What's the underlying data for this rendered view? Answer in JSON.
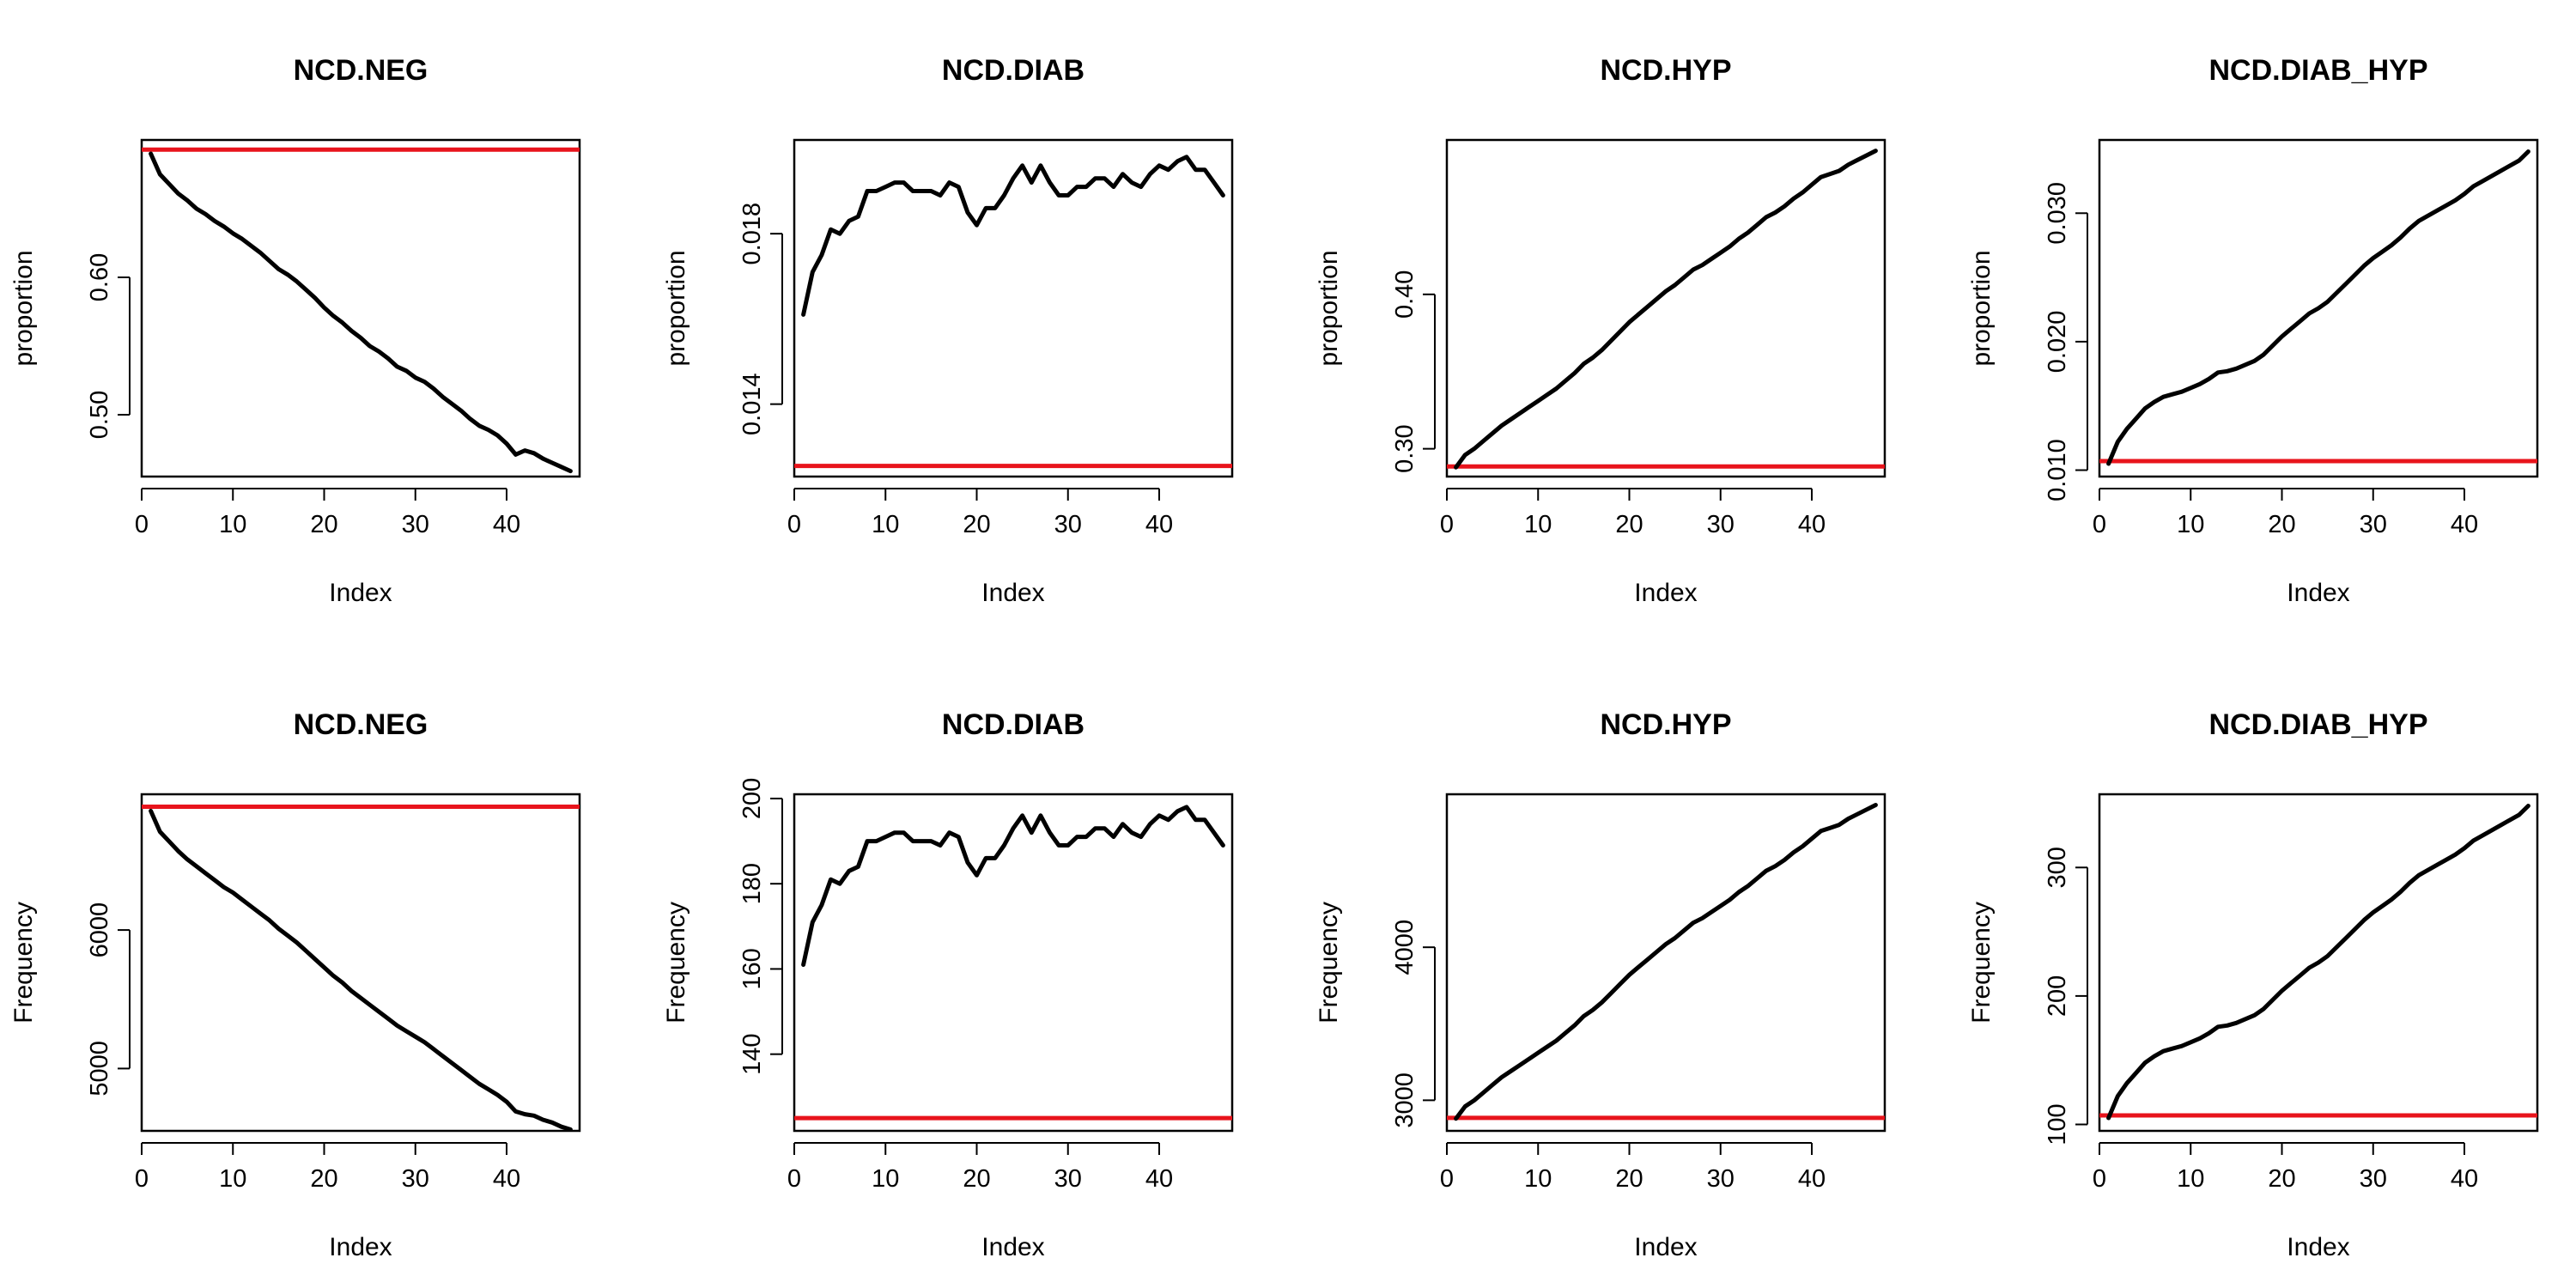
{
  "figure": {
    "ref_color": "#e8141c",
    "line_color": "#000000"
  },
  "chart_data": [
    {
      "type": "line",
      "title": "NCD.NEG",
      "xlabel": "Index",
      "ylabel": "proportion",
      "xlim": [
        0,
        48
      ],
      "ylim": [
        0.455,
        0.7
      ],
      "xticks": [
        0,
        10,
        20,
        30,
        40
      ],
      "yticks": [
        0.5,
        0.6
      ],
      "ytick_labels": [
        "0.50",
        "0.60"
      ],
      "grid": false,
      "x": [
        1,
        2,
        3,
        4,
        5,
        6,
        7,
        8,
        9,
        10,
        11,
        12,
        13,
        14,
        15,
        16,
        17,
        18,
        19,
        20,
        21,
        22,
        23,
        24,
        25,
        26,
        27,
        28,
        29,
        30,
        31,
        32,
        33,
        34,
        35,
        36,
        37,
        38,
        39,
        40,
        41,
        42,
        43,
        44,
        45,
        46,
        47
      ],
      "series": [
        {
          "values": [
            0.69,
            0.675,
            0.668,
            0.661,
            0.656,
            0.65,
            0.646,
            0.641,
            0.637,
            0.632,
            0.628,
            0.623,
            0.618,
            0.612,
            0.606,
            0.602,
            0.597,
            0.591,
            0.585,
            0.578,
            0.572,
            0.567,
            0.561,
            0.556,
            0.55,
            0.546,
            0.541,
            0.535,
            0.532,
            0.527,
            0.524,
            0.519,
            0.513,
            0.508,
            0.503,
            0.497,
            0.492,
            0.489,
            0.485,
            0.479,
            0.471,
            0.474,
            0.472,
            0.468,
            0.465,
            0.462,
            0.459
          ]
        }
      ],
      "reference_line": 0.693
    },
    {
      "type": "line",
      "title": "NCD.DIAB",
      "xlabel": "Index",
      "ylabel": "proportion",
      "xlim": [
        0,
        48
      ],
      "ylim": [
        0.0123,
        0.0202
      ],
      "xticks": [
        0,
        10,
        20,
        30,
        40
      ],
      "yticks": [
        0.014,
        0.018
      ],
      "ytick_labels": [
        "0.014",
        "0.018"
      ],
      "grid": false,
      "x": [
        1,
        2,
        3,
        4,
        5,
        6,
        7,
        8,
        9,
        10,
        11,
        12,
        13,
        14,
        15,
        16,
        17,
        18,
        19,
        20,
        21,
        22,
        23,
        24,
        25,
        26,
        27,
        28,
        29,
        30,
        31,
        32,
        33,
        34,
        35,
        36,
        37,
        38,
        39,
        40,
        41,
        42,
        43,
        44,
        45,
        46,
        47
      ],
      "series": [
        {
          "values": [
            0.0161,
            0.0171,
            0.0175,
            0.0181,
            0.018,
            0.0183,
            0.0184,
            0.019,
            0.019,
            0.0191,
            0.0192,
            0.0192,
            0.019,
            0.019,
            0.019,
            0.0189,
            0.0192,
            0.0191,
            0.0185,
            0.0182,
            0.0186,
            0.0186,
            0.0189,
            0.0193,
            0.0196,
            0.0192,
            0.0196,
            0.0192,
            0.0189,
            0.0189,
            0.0191,
            0.0191,
            0.0193,
            0.0193,
            0.0191,
            0.0194,
            0.0192,
            0.0191,
            0.0194,
            0.0196,
            0.0195,
            0.0197,
            0.0198,
            0.0195,
            0.0195,
            0.0192,
            0.0189
          ]
        }
      ],
      "reference_line": 0.01255
    },
    {
      "type": "line",
      "title": "NCD.HYP",
      "xlabel": "Index",
      "ylabel": "proportion",
      "xlim": [
        0,
        48
      ],
      "ylim": [
        0.282,
        0.5
      ],
      "xticks": [
        0,
        10,
        20,
        30,
        40
      ],
      "yticks": [
        0.3,
        0.4
      ],
      "ytick_labels": [
        "0.30",
        "0.40"
      ],
      "grid": false,
      "x": [
        1,
        2,
        3,
        4,
        5,
        6,
        7,
        8,
        9,
        10,
        11,
        12,
        13,
        14,
        15,
        16,
        17,
        18,
        19,
        20,
        21,
        22,
        23,
        24,
        25,
        26,
        27,
        28,
        29,
        30,
        31,
        32,
        33,
        34,
        35,
        36,
        37,
        38,
        39,
        40,
        41,
        42,
        43,
        44,
        45,
        46,
        47
      ],
      "series": [
        {
          "values": [
            0.288,
            0.296,
            0.3,
            0.305,
            0.31,
            0.315,
            0.319,
            0.323,
            0.327,
            0.331,
            0.335,
            0.339,
            0.344,
            0.349,
            0.355,
            0.359,
            0.364,
            0.37,
            0.376,
            0.382,
            0.387,
            0.392,
            0.397,
            0.402,
            0.406,
            0.411,
            0.416,
            0.419,
            0.423,
            0.427,
            0.431,
            0.436,
            0.44,
            0.445,
            0.45,
            0.453,
            0.457,
            0.462,
            0.466,
            0.471,
            0.476,
            0.478,
            0.48,
            0.484,
            0.487,
            0.49,
            0.493
          ]
        }
      ],
      "reference_line": 0.2885
    },
    {
      "type": "line",
      "title": "NCD.DIAB_HYP",
      "xlabel": "Index",
      "ylabel": "proportion",
      "xlim": [
        0,
        48
      ],
      "ylim": [
        0.0095,
        0.0357
      ],
      "xticks": [
        0,
        10,
        20,
        30,
        40
      ],
      "yticks": [
        0.01,
        0.02,
        0.03
      ],
      "ytick_labels": [
        "0.010",
        "0.020",
        "0.030"
      ],
      "grid": false,
      "x": [
        1,
        2,
        3,
        4,
        5,
        6,
        7,
        8,
        9,
        10,
        11,
        12,
        13,
        14,
        15,
        16,
        17,
        18,
        19,
        20,
        21,
        22,
        23,
        24,
        25,
        26,
        27,
        28,
        29,
        30,
        31,
        32,
        33,
        34,
        35,
        36,
        37,
        38,
        39,
        40,
        41,
        42,
        43,
        44,
        45,
        46,
        47
      ],
      "series": [
        {
          "values": [
            0.0105,
            0.0122,
            0.0132,
            0.014,
            0.0148,
            0.0153,
            0.0157,
            0.0159,
            0.0161,
            0.0164,
            0.0167,
            0.0171,
            0.0176,
            0.0177,
            0.0179,
            0.0182,
            0.0185,
            0.019,
            0.0197,
            0.0204,
            0.021,
            0.0216,
            0.0222,
            0.0226,
            0.0231,
            0.0238,
            0.0245,
            0.0252,
            0.0259,
            0.0265,
            0.027,
            0.0275,
            0.0281,
            0.0288,
            0.0294,
            0.0298,
            0.0302,
            0.0306,
            0.031,
            0.0315,
            0.0321,
            0.0325,
            0.0329,
            0.0333,
            0.0337,
            0.0341,
            0.0348
          ]
        }
      ],
      "reference_line": 0.0107
    },
    {
      "type": "line",
      "title": "NCD.NEG",
      "xlabel": "Index",
      "ylabel": "Frequency",
      "xlim": [
        0,
        48
      ],
      "ylim": [
        4550,
        6980
      ],
      "xticks": [
        0,
        10,
        20,
        30,
        40
      ],
      "yticks": [
        5000,
        6000
      ],
      "ytick_labels": [
        "5000",
        "6000"
      ],
      "grid": false,
      "x": [
        1,
        2,
        3,
        4,
        5,
        6,
        7,
        8,
        9,
        10,
        11,
        12,
        13,
        14,
        15,
        16,
        17,
        18,
        19,
        20,
        21,
        22,
        23,
        24,
        25,
        26,
        27,
        28,
        29,
        30,
        31,
        32,
        33,
        34,
        35,
        36,
        37,
        38,
        39,
        40,
        41,
        42,
        43,
        44,
        45,
        46,
        47
      ],
      "series": [
        {
          "values": [
            6860,
            6710,
            6640,
            6570,
            6510,
            6460,
            6410,
            6360,
            6310,
            6270,
            6220,
            6170,
            6120,
            6070,
            6010,
            5960,
            5910,
            5850,
            5790,
            5730,
            5670,
            5620,
            5560,
            5510,
            5460,
            5410,
            5360,
            5310,
            5270,
            5230,
            5190,
            5140,
            5090,
            5040,
            4990,
            4940,
            4890,
            4850,
            4810,
            4760,
            4690,
            4670,
            4660,
            4630,
            4610,
            4580,
            4560
          ]
        }
      ],
      "reference_line": 6890
    },
    {
      "type": "line",
      "title": "NCD.DIAB",
      "xlabel": "Index",
      "ylabel": "Frequency",
      "xlim": [
        0,
        48
      ],
      "ylim": [
        122,
        201
      ],
      "xticks": [
        0,
        10,
        20,
        30,
        40
      ],
      "yticks": [
        140,
        160,
        180,
        200
      ],
      "ytick_labels": [
        "140",
        "160",
        "180",
        "200"
      ],
      "grid": false,
      "x": [
        1,
        2,
        3,
        4,
        5,
        6,
        7,
        8,
        9,
        10,
        11,
        12,
        13,
        14,
        15,
        16,
        17,
        18,
        19,
        20,
        21,
        22,
        23,
        24,
        25,
        26,
        27,
        28,
        29,
        30,
        31,
        32,
        33,
        34,
        35,
        36,
        37,
        38,
        39,
        40,
        41,
        42,
        43,
        44,
        45,
        46,
        47
      ],
      "series": [
        {
          "values": [
            161,
            171,
            175,
            181,
            180,
            183,
            184,
            190,
            190,
            191,
            192,
            192,
            190,
            190,
            190,
            189,
            192,
            191,
            185,
            182,
            186,
            186,
            189,
            193,
            196,
            192,
            196,
            192,
            189,
            189,
            191,
            191,
            193,
            193,
            191,
            194,
            192,
            191,
            194,
            196,
            195,
            197,
            198,
            195,
            195,
            192,
            189
          ]
        }
      ],
      "reference_line": 125
    },
    {
      "type": "line",
      "title": "NCD.HYP",
      "xlabel": "Index",
      "ylabel": "Frequency",
      "xlim": [
        0,
        48
      ],
      "ylim": [
        2800,
        5000
      ],
      "xticks": [
        0,
        10,
        20,
        30,
        40
      ],
      "yticks": [
        3000,
        4000
      ],
      "ytick_labels": [
        "3000",
        "4000"
      ],
      "grid": false,
      "x": [
        1,
        2,
        3,
        4,
        5,
        6,
        7,
        8,
        9,
        10,
        11,
        12,
        13,
        14,
        15,
        16,
        17,
        18,
        19,
        20,
        21,
        22,
        23,
        24,
        25,
        26,
        27,
        28,
        29,
        30,
        31,
        32,
        33,
        34,
        35,
        36,
        37,
        38,
        39,
        40,
        41,
        42,
        43,
        44,
        45,
        46,
        47
      ],
      "series": [
        {
          "values": [
            2880,
            2960,
            3000,
            3050,
            3100,
            3150,
            3190,
            3230,
            3270,
            3310,
            3350,
            3390,
            3440,
            3490,
            3550,
            3590,
            3640,
            3700,
            3760,
            3820,
            3870,
            3920,
            3970,
            4020,
            4060,
            4110,
            4160,
            4190,
            4230,
            4270,
            4310,
            4360,
            4400,
            4450,
            4500,
            4530,
            4570,
            4620,
            4660,
            4710,
            4760,
            4780,
            4800,
            4840,
            4870,
            4900,
            4930
          ]
        }
      ],
      "reference_line": 2885
    },
    {
      "type": "line",
      "title": "NCD.DIAB_HYP",
      "xlabel": "Index",
      "ylabel": "Frequency",
      "xlim": [
        0,
        48
      ],
      "ylim": [
        95,
        357
      ],
      "xticks": [
        0,
        10,
        20,
        30,
        40
      ],
      "yticks": [
        100,
        200,
        300
      ],
      "ytick_labels": [
        "100",
        "200",
        "300"
      ],
      "grid": false,
      "x": [
        1,
        2,
        3,
        4,
        5,
        6,
        7,
        8,
        9,
        10,
        11,
        12,
        13,
        14,
        15,
        16,
        17,
        18,
        19,
        20,
        21,
        22,
        23,
        24,
        25,
        26,
        27,
        28,
        29,
        30,
        31,
        32,
        33,
        34,
        35,
        36,
        37,
        38,
        39,
        40,
        41,
        42,
        43,
        44,
        45,
        46,
        47
      ],
      "series": [
        {
          "values": [
            105,
            122,
            132,
            140,
            148,
            153,
            157,
            159,
            161,
            164,
            167,
            171,
            176,
            177,
            179,
            182,
            185,
            190,
            197,
            204,
            210,
            216,
            222,
            226,
            231,
            238,
            245,
            252,
            259,
            265,
            270,
            275,
            281,
            288,
            294,
            298,
            302,
            306,
            310,
            315,
            321,
            325,
            329,
            333,
            337,
            341,
            348
          ]
        }
      ],
      "reference_line": 107
    }
  ]
}
